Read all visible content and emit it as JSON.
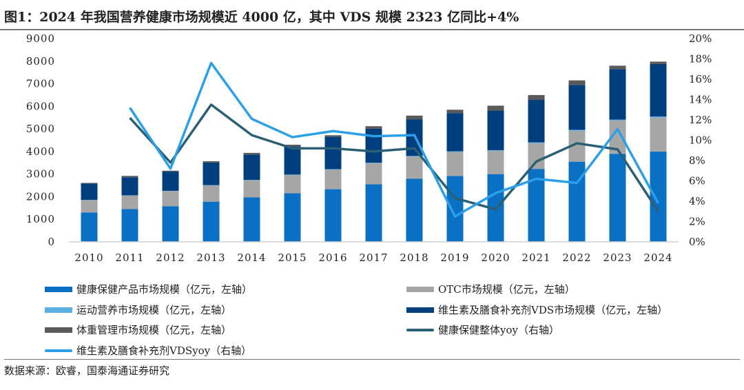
{
  "title": "图1：2024 年我国营养健康市场规模近 4000 亿，其中 VDS 规模 2323 亿同比+4%",
  "source": "数据来源：欧睿，国泰海通证券研究",
  "chart_data": {
    "type": "bar+line",
    "categories": [
      "2010",
      "2011",
      "2012",
      "2013",
      "2014",
      "2015",
      "2016",
      "2017",
      "2018",
      "2019",
      "2020",
      "2021",
      "2022",
      "2023",
      "2024"
    ],
    "left_axis": {
      "ylim": [
        0,
        9000
      ],
      "ticks": [
        "0",
        "1000",
        "2000",
        "3000",
        "4000",
        "5000",
        "6000",
        "7000",
        "8000",
        "9000"
      ]
    },
    "right_axis": {
      "ylim": [
        0,
        20
      ],
      "ticks": [
        "0%",
        "2%",
        "4%",
        "6%",
        "8%",
        "10%",
        "12%",
        "14%",
        "16%",
        "18%",
        "20%"
      ]
    },
    "grid": false,
    "legend_position": "bottom",
    "stacked_series": [
      {
        "name": "健康保健产品市场规模（亿元，左轴）",
        "color": "#0a70c4",
        "values": [
          1300,
          1450,
          1580,
          1780,
          1970,
          2150,
          2330,
          2550,
          2800,
          2920,
          3000,
          3230,
          3550,
          3900,
          4000
        ]
      },
      {
        "name": "OTC市场规模（亿元，左轴）",
        "color": "#a6a6a6",
        "values": [
          550,
          600,
          670,
          720,
          760,
          810,
          870,
          930,
          980,
          1060,
          1030,
          1140,
          1370,
          1470,
          1500
        ]
      },
      {
        "name": "运动营养市场规模（亿元，左轴）",
        "color": "#5aaee0",
        "values": [
          10,
          10,
          10,
          15,
          15,
          20,
          20,
          25,
          25,
          30,
          30,
          35,
          40,
          45,
          50
        ]
      },
      {
        "name": "维生素及膳食补充剂VDS市场规模（亿元，左轴）",
        "color": "#003e7e",
        "values": [
          720,
          800,
          850,
          1000,
          1120,
          1250,
          1430,
          1500,
          1610,
          1690,
          1750,
          1880,
          1990,
          2235,
          2323
        ]
      },
      {
        "name": "体重管理市场规模（亿元，左轴）",
        "color": "#5a5a5a",
        "values": [
          30,
          60,
          40,
          55,
          75,
          70,
          70,
          115,
          175,
          150,
          220,
          215,
          200,
          150,
          107
        ]
      }
    ],
    "line_series": [
      {
        "name": "健康保健整体yoy（右轴）",
        "color": "#2b5f74",
        "values": [
          null,
          12.2,
          7.8,
          13.5,
          10.5,
          9.2,
          9.2,
          8.9,
          9.2,
          4.3,
          3.2,
          7.9,
          9.7,
          9.1,
          3.0
        ]
      },
      {
        "name": "维生素及膳食补充剂VDSyoy（右轴）",
        "color": "#2b9fe8",
        "values": [
          null,
          13.2,
          7.2,
          17.6,
          12.1,
          10.3,
          10.9,
          10.4,
          10.5,
          2.5,
          4.8,
          6.2,
          5.8,
          11.1,
          3.8
        ]
      }
    ]
  }
}
